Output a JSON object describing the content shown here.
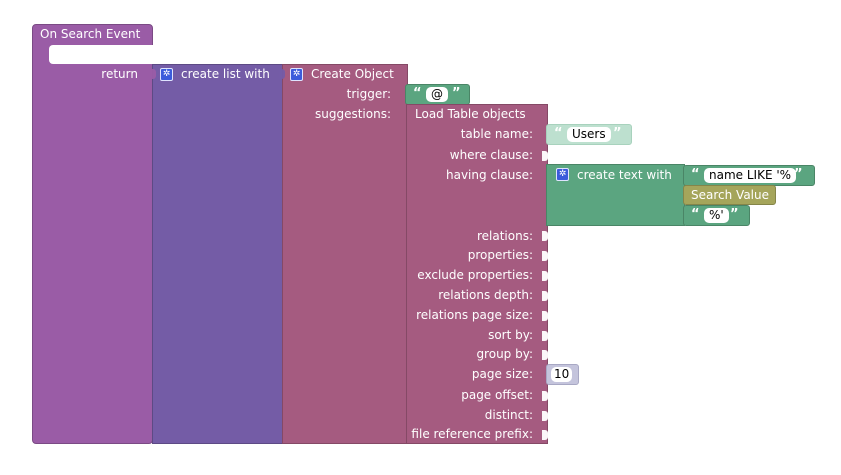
{
  "event_block": {
    "title": "On Search Event",
    "return_label": "return"
  },
  "list_block": {
    "label": "create list with"
  },
  "object_block": {
    "label": "Create Object",
    "trigger_label": "trigger:",
    "suggestions_label": "suggestions:"
  },
  "trigger_text": {
    "value": "@"
  },
  "load_block": {
    "title": "Load Table objects",
    "fields": {
      "table_name": "table name:",
      "where_clause": "where clause:",
      "having_clause": "having clause:",
      "relations": "relations:",
      "properties": "properties:",
      "exclude_properties": "exclude properties:",
      "relations_depth": "relations depth:",
      "relations_page_size": "relations page size:",
      "sort_by": "sort by:",
      "group_by": "group by:",
      "page_size": "page size:",
      "page_offset": "page offset:",
      "distinct": "distinct:",
      "file_reference_prefix": "file reference prefix:"
    }
  },
  "table_name_text": {
    "value": "Users"
  },
  "create_text_block": {
    "label": "create text with"
  },
  "text_part1": {
    "value": "name LIKE '%"
  },
  "search_value_block": {
    "label": "Search Value"
  },
  "text_part3": {
    "value": "%'"
  },
  "page_size_number": {
    "value": "10"
  },
  "quote_glyphs": {
    "open": "“",
    "close": "”"
  },
  "icons": {
    "gear": "gear-icon"
  },
  "colors": {
    "event_block": "#9a5ca6",
    "list_block": "#745ca6",
    "object_block": "#a55b80",
    "load_block": "#a55b80",
    "text_block": "#5ba580",
    "search_value_block": "#a5a55b",
    "number_block": "#c4c4dc",
    "gear_icon": "#3b5bdb"
  }
}
